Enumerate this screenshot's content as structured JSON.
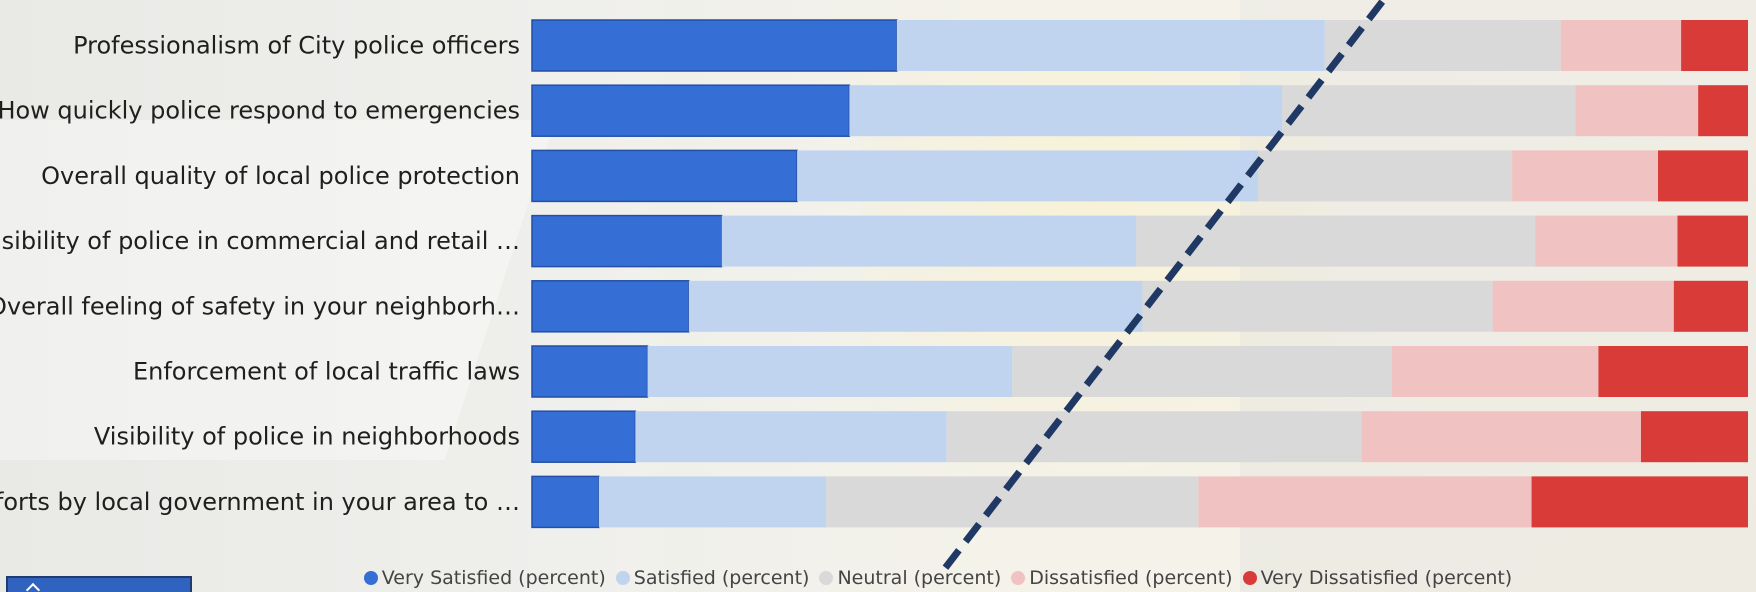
{
  "chart_data": {
    "type": "bar",
    "orientation": "horizontal-stacked",
    "categories": [
      "Professionalism of City police officers",
      "How quickly police respond to emergencies",
      "Overall quality of local police protection",
      "Visibility of police in commercial and retail …",
      "Overall feeling of safety in your neighborh…",
      "Enforcement of local traffic laws",
      "Visibility of police in neighborhoods",
      "Efforts by local government in your area to …"
    ],
    "series": [
      {
        "name": "Very Satisfied (percent)",
        "color": "#356fd6",
        "values": [
          30.0,
          26.1,
          21.8,
          15.6,
          12.9,
          9.5,
          8.5,
          5.5
        ]
      },
      {
        "name": "Satisfied (percent)",
        "color": "#c1d4ef",
        "values": [
          35.2,
          35.6,
          37.9,
          34.1,
          37.3,
          30.0,
          25.6,
          18.7
        ]
      },
      {
        "name": "Neutral (percent)",
        "color": "#d9d9d9",
        "values": [
          19.4,
          24.1,
          20.9,
          32.8,
          28.8,
          31.2,
          34.1,
          30.6
        ]
      },
      {
        "name": "Dissatisfied (percent)",
        "color": "#f0c2c1",
        "values": [
          9.9,
          10.1,
          12.0,
          11.7,
          14.9,
          17.0,
          23.0,
          27.4
        ]
      },
      {
        "name": "Very Dissatisfied (percent)",
        "color": "#d83b38",
        "values": [
          5.5,
          4.1,
          7.4,
          5.8,
          6.1,
          12.3,
          8.8,
          17.8
        ]
      }
    ],
    "xlim": [
      0,
      100
    ],
    "legend_position": "bottom-center",
    "grid": false,
    "reference_line": {
      "type": "diagonal-dashed",
      "color": "#1f3864",
      "from": [
        34,
        8.4
      ],
      "to": [
        70,
        -0.3
      ]
    }
  }
}
